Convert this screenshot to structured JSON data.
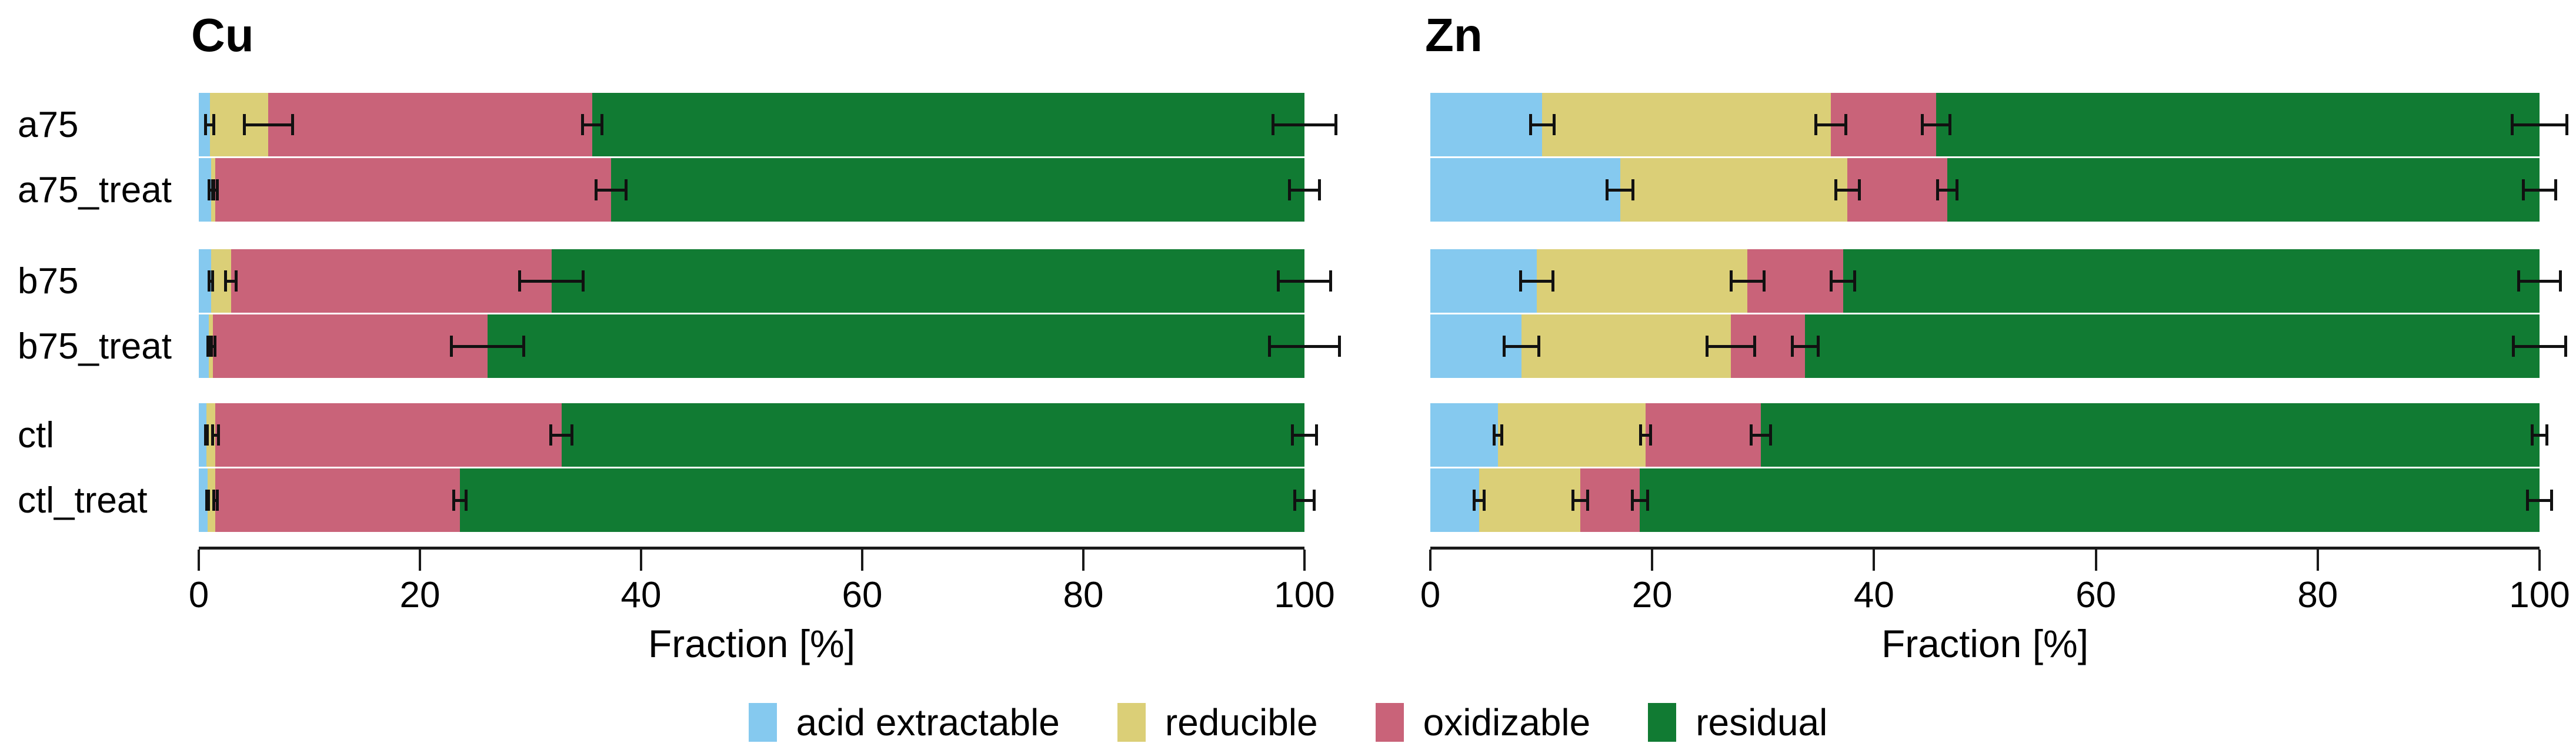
{
  "colors": {
    "acid": "#85C9EF",
    "reducible": "#DBCF77",
    "oxidizable": "#C96379",
    "residual": "#117B33",
    "axis": "#1a1a1a",
    "text": "#000000"
  },
  "legend": {
    "items": [
      {
        "key": "acid",
        "label": "acid extractable"
      },
      {
        "key": "reducible",
        "label": "reducible"
      },
      {
        "key": "oxidizable",
        "label": "oxidizable"
      },
      {
        "key": "residual",
        "label": "residual"
      }
    ]
  },
  "chart_data": [
    {
      "type": "bar",
      "orientation": "horizontal",
      "stacked": true,
      "title": "Cu",
      "xlabel": "Fraction [%]",
      "xlim": [
        0,
        100
      ],
      "xticks": [
        0,
        20,
        40,
        60,
        80,
        100
      ],
      "grid": false,
      "categories": [
        "a75",
        "a75_treat",
        "b75",
        "b75_treat",
        "ctl",
        "ctl_treat"
      ],
      "series": [
        {
          "key": "acid",
          "name": "acid extractable",
          "values": [
            1.0,
            1.1,
            1.1,
            0.9,
            0.7,
            0.8
          ],
          "errors": [
            0.5,
            0.3,
            0.3,
            0.2,
            0.2,
            0.2
          ]
        },
        {
          "key": "reducible",
          "name": "reducible",
          "values": [
            5.3,
            0.4,
            1.8,
            0.4,
            0.8,
            0.7
          ],
          "errors": [
            2.3,
            0.3,
            0.6,
            0.3,
            0.4,
            0.3
          ]
        },
        {
          "key": "oxidizable",
          "name": "oxidizable",
          "values": [
            29.3,
            35.8,
            29.0,
            24.8,
            31.3,
            22.1
          ],
          "errors": [
            1.0,
            1.5,
            3.0,
            3.4,
            1.1,
            0.7
          ]
        },
        {
          "key": "residual",
          "name": "residual",
          "values": [
            64.4,
            62.7,
            68.1,
            73.9,
            67.2,
            76.4
          ],
          "errors": [
            3.0,
            1.5,
            2.5,
            3.3,
            1.2,
            1.0
          ]
        }
      ],
      "error_note": "error bars drawn at cumulative segment boundaries"
    },
    {
      "type": "bar",
      "orientation": "horizontal",
      "stacked": true,
      "title": "Zn",
      "xlabel": "Fraction [%]",
      "xlim": [
        0,
        100
      ],
      "xticks": [
        0,
        20,
        40,
        60,
        80,
        100
      ],
      "grid": false,
      "categories": [
        "a75",
        "a75_treat",
        "b75",
        "b75_treat",
        "ctl",
        "ctl_treat"
      ],
      "series": [
        {
          "key": "acid",
          "name": "acid extractable",
          "values": [
            10.1,
            17.1,
            9.6,
            8.2,
            6.1,
            4.4
          ],
          "errors": [
            1.2,
            1.3,
            1.6,
            1.7,
            0.5,
            0.6
          ]
        },
        {
          "key": "reducible",
          "name": "reducible",
          "values": [
            26.0,
            20.5,
            19.0,
            18.9,
            13.3,
            9.1
          ],
          "errors": [
            1.5,
            1.2,
            1.6,
            2.3,
            0.6,
            0.8
          ]
        },
        {
          "key": "oxidizable",
          "name": "oxidizable",
          "values": [
            9.5,
            9.0,
            8.6,
            6.7,
            10.4,
            5.4
          ],
          "errors": [
            1.4,
            1.0,
            1.2,
            1.3,
            1.0,
            0.8
          ]
        },
        {
          "key": "residual",
          "name": "residual",
          "values": [
            54.4,
            53.4,
            62.8,
            66.2,
            70.2,
            81.1
          ],
          "errors": [
            2.6,
            1.6,
            2.0,
            2.5,
            0.8,
            1.2
          ]
        }
      ],
      "error_note": "error bars drawn at cumulative segment boundaries"
    }
  ]
}
